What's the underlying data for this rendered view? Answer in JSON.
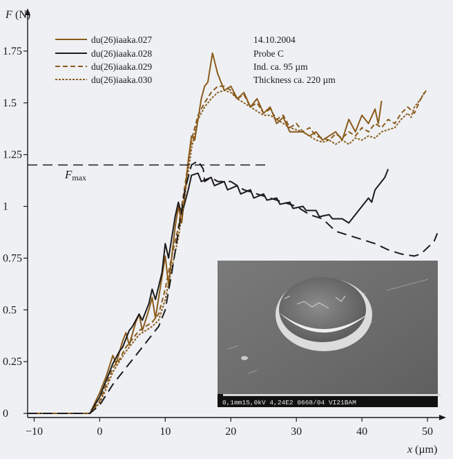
{
  "chart_data": {
    "type": "line",
    "x_axis": {
      "var": "x",
      "unit": "(µm)",
      "ticks": [
        -10,
        0,
        10,
        20,
        30,
        40,
        50
      ],
      "range": [
        -11,
        52
      ]
    },
    "y_axis": {
      "var": "F",
      "unit": "(N)",
      "ticks": [
        0,
        0.25,
        0.5,
        0.75,
        1,
        1.25,
        1.5,
        1.75
      ],
      "tick_labels": [
        "0",
        "0.25",
        "0.5",
        "0.75",
        "1",
        "1.25",
        "1.5",
        "1.75"
      ],
      "range": [
        -0.02,
        1.93
      ]
    },
    "series": [
      {
        "name": "du(26)iaaka.027",
        "color": "#8a5a1a",
        "style": "solid",
        "points": [
          [
            -11,
            0
          ],
          [
            -1.5,
            0
          ],
          [
            0,
            0.1
          ],
          [
            1,
            0.18
          ],
          [
            2,
            0.28
          ],
          [
            2.5,
            0.24
          ],
          [
            3.5,
            0.35
          ],
          [
            4,
            0.39
          ],
          [
            4.5,
            0.33
          ],
          [
            5.5,
            0.44
          ],
          [
            6,
            0.48
          ],
          [
            6.5,
            0.4
          ],
          [
            7.5,
            0.5
          ],
          [
            8,
            0.56
          ],
          [
            8.5,
            0.46
          ],
          [
            9.5,
            0.66
          ],
          [
            10,
            0.76
          ],
          [
            10.5,
            0.62
          ],
          [
            11.5,
            0.9
          ],
          [
            12,
            1.0
          ],
          [
            12.5,
            0.92
          ],
          [
            13.5,
            1.22
          ],
          [
            14,
            1.34
          ],
          [
            14.5,
            1.32
          ],
          [
            15.5,
            1.52
          ],
          [
            16,
            1.58
          ],
          [
            16.5,
            1.6
          ],
          [
            17.2,
            1.74
          ],
          [
            18,
            1.64
          ],
          [
            19,
            1.56
          ],
          [
            20,
            1.58
          ],
          [
            21,
            1.52
          ],
          [
            22,
            1.55
          ],
          [
            23,
            1.48
          ],
          [
            24,
            1.52
          ],
          [
            25,
            1.45
          ],
          [
            26,
            1.48
          ],
          [
            27,
            1.4
          ],
          [
            28,
            1.43
          ],
          [
            29,
            1.36
          ],
          [
            31,
            1.36
          ],
          [
            32,
            1.34
          ],
          [
            33,
            1.36
          ],
          [
            34,
            1.32
          ],
          [
            35,
            1.34
          ],
          [
            36,
            1.36
          ],
          [
            37,
            1.32
          ],
          [
            38,
            1.42
          ],
          [
            39,
            1.36
          ],
          [
            40,
            1.44
          ],
          [
            41,
            1.4
          ],
          [
            42,
            1.47
          ],
          [
            42.5,
            1.4
          ],
          [
            43,
            1.51
          ]
        ]
      },
      {
        "name": "du(26)iaaka.028",
        "color": "#1a1a1a",
        "style": "solid",
        "points": [
          [
            -11,
            0
          ],
          [
            -1.5,
            0
          ],
          [
            0,
            0.08
          ],
          [
            1,
            0.16
          ],
          [
            2,
            0.24
          ],
          [
            3,
            0.3
          ],
          [
            3.5,
            0.32
          ],
          [
            4.5,
            0.4
          ],
          [
            5,
            0.42
          ],
          [
            6,
            0.48
          ],
          [
            6.5,
            0.45
          ],
          [
            7.5,
            0.53
          ],
          [
            8,
            0.6
          ],
          [
            8.5,
            0.55
          ],
          [
            9.5,
            0.68
          ],
          [
            10,
            0.82
          ],
          [
            10.5,
            0.75
          ],
          [
            11.5,
            0.95
          ],
          [
            12,
            1.02
          ],
          [
            12.5,
            0.96
          ],
          [
            13.5,
            1.08
          ],
          [
            14,
            1.15
          ],
          [
            15,
            1.16
          ],
          [
            15.5,
            1.12
          ],
          [
            17,
            1.14
          ],
          [
            17.5,
            1.1
          ],
          [
            19,
            1.12
          ],
          [
            19.5,
            1.08
          ],
          [
            21,
            1.1
          ],
          [
            21.5,
            1.06
          ],
          [
            23,
            1.08
          ],
          [
            23.5,
            1.04
          ],
          [
            25,
            1.06
          ],
          [
            25.5,
            1.03
          ],
          [
            27,
            1.04
          ],
          [
            27.5,
            1.01
          ],
          [
            29,
            1.02
          ],
          [
            29.5,
            0.99
          ],
          [
            31,
            1.0
          ],
          [
            31.5,
            0.98
          ],
          [
            33,
            0.98
          ],
          [
            33.5,
            0.95
          ],
          [
            35,
            0.96
          ],
          [
            35.5,
            0.94
          ],
          [
            37,
            0.94
          ],
          [
            38,
            0.92
          ],
          [
            39,
            0.96
          ],
          [
            40,
            1.0
          ],
          [
            41,
            1.04
          ],
          [
            41.5,
            1.02
          ],
          [
            42,
            1.08
          ],
          [
            43,
            1.12
          ],
          [
            43.5,
            1.14
          ],
          [
            44,
            1.18
          ]
        ]
      },
      {
        "name": "du(26)iaaka.029",
        "color": "#8a5a1a",
        "style": "dashed",
        "points": [
          [
            -11,
            0
          ],
          [
            -1.5,
            0
          ],
          [
            0,
            0.06
          ],
          [
            1,
            0.14
          ],
          [
            2,
            0.22
          ],
          [
            3,
            0.26
          ],
          [
            4,
            0.32
          ],
          [
            5,
            0.36
          ],
          [
            6,
            0.4
          ],
          [
            7,
            0.42
          ],
          [
            8,
            0.44
          ],
          [
            9,
            0.48
          ],
          [
            10,
            0.6
          ],
          [
            11,
            0.76
          ],
          [
            12,
            0.9
          ],
          [
            13,
            1.1
          ],
          [
            14,
            1.32
          ],
          [
            15,
            1.44
          ],
          [
            16,
            1.5
          ],
          [
            17,
            1.55
          ],
          [
            18,
            1.58
          ],
          [
            19,
            1.58
          ],
          [
            20,
            1.56
          ],
          [
            21,
            1.52
          ],
          [
            22,
            1.54
          ],
          [
            23,
            1.48
          ],
          [
            24,
            1.5
          ],
          [
            25,
            1.45
          ],
          [
            26,
            1.47
          ],
          [
            27,
            1.42
          ],
          [
            28,
            1.44
          ],
          [
            29,
            1.38
          ],
          [
            30,
            1.4
          ],
          [
            31,
            1.36
          ],
          [
            32,
            1.38
          ],
          [
            33,
            1.34
          ],
          [
            34,
            1.33
          ],
          [
            35,
            1.32
          ],
          [
            36,
            1.35
          ],
          [
            37,
            1.33
          ],
          [
            38,
            1.36
          ],
          [
            39,
            1.34
          ],
          [
            40,
            1.38
          ],
          [
            41,
            1.36
          ],
          [
            42,
            1.4
          ],
          [
            43,
            1.38
          ],
          [
            44,
            1.42
          ],
          [
            45,
            1.4
          ],
          [
            46,
            1.45
          ],
          [
            47,
            1.48
          ],
          [
            48,
            1.45
          ],
          [
            49,
            1.52
          ],
          [
            50,
            1.57
          ]
        ]
      },
      {
        "name": "du(26)iaaka.030",
        "color": "#8a5a1a",
        "style": "dotted",
        "points": [
          [
            -11,
            0
          ],
          [
            -1.5,
            0
          ],
          [
            0,
            0.05
          ],
          [
            1,
            0.12
          ],
          [
            2,
            0.2
          ],
          [
            3,
            0.25
          ],
          [
            4,
            0.3
          ],
          [
            5,
            0.34
          ],
          [
            6,
            0.38
          ],
          [
            7,
            0.4
          ],
          [
            8,
            0.42
          ],
          [
            9,
            0.45
          ],
          [
            10,
            0.55
          ],
          [
            11,
            0.7
          ],
          [
            12,
            0.85
          ],
          [
            13,
            1.05
          ],
          [
            14,
            1.28
          ],
          [
            15,
            1.42
          ],
          [
            16,
            1.48
          ],
          [
            17,
            1.52
          ],
          [
            18,
            1.55
          ],
          [
            19,
            1.56
          ],
          [
            20,
            1.55
          ],
          [
            21,
            1.52
          ],
          [
            22,
            1.5
          ],
          [
            23,
            1.48
          ],
          [
            24,
            1.46
          ],
          [
            25,
            1.44
          ],
          [
            26,
            1.44
          ],
          [
            27,
            1.42
          ],
          [
            28,
            1.4
          ],
          [
            29,
            1.38
          ],
          [
            30,
            1.37
          ],
          [
            31,
            1.36
          ],
          [
            32,
            1.34
          ],
          [
            33,
            1.32
          ],
          [
            34,
            1.31
          ],
          [
            35,
            1.32
          ],
          [
            36,
            1.3
          ],
          [
            37,
            1.32
          ],
          [
            38,
            1.3
          ],
          [
            39,
            1.33
          ],
          [
            40,
            1.32
          ],
          [
            41,
            1.34
          ],
          [
            42,
            1.33
          ],
          [
            43,
            1.36
          ],
          [
            44,
            1.37
          ],
          [
            45,
            1.38
          ],
          [
            46,
            1.42
          ],
          [
            47,
            1.45
          ],
          [
            47.5,
            1.43
          ],
          [
            48,
            1.48
          ],
          [
            49,
            1.52
          ],
          [
            49.5,
            1.55
          ]
        ]
      },
      {
        "name": "",
        "color": "#1a1a1a",
        "style": "longdash",
        "points": [
          [
            -11,
            0
          ],
          [
            -1.5,
            0
          ],
          [
            0,
            0.04
          ],
          [
            2,
            0.14
          ],
          [
            4,
            0.22
          ],
          [
            6,
            0.3
          ],
          [
            8,
            0.38
          ],
          [
            9,
            0.42
          ],
          [
            10,
            0.5
          ],
          [
            11,
            0.68
          ],
          [
            12,
            0.88
          ],
          [
            13,
            1.08
          ],
          [
            14,
            1.2
          ],
          [
            15,
            1.22
          ],
          [
            15.8,
            1.18
          ],
          [
            16,
            1.12
          ],
          [
            17,
            1.14
          ],
          [
            18,
            1.12
          ],
          [
            20,
            1.12
          ],
          [
            22,
            1.08
          ],
          [
            24,
            1.06
          ],
          [
            26,
            1.04
          ],
          [
            28,
            1.02
          ],
          [
            30,
            1.0
          ],
          [
            32,
            0.96
          ],
          [
            34,
            0.94
          ],
          [
            36,
            0.88
          ],
          [
            38,
            0.86
          ],
          [
            40,
            0.84
          ],
          [
            42,
            0.82
          ],
          [
            44,
            0.79
          ],
          [
            46,
            0.77
          ],
          [
            48,
            0.76
          ],
          [
            49,
            0.77
          ],
          [
            50,
            0.8
          ],
          [
            51,
            0.83
          ],
          [
            51.5,
            0.87
          ]
        ]
      }
    ],
    "annotations": {
      "notes": [
        "14.10.2004",
        "Probe C",
        "Ind. ca. 95 µm",
        "Thickness ca. 220 µm"
      ],
      "fmax_line_value": 1.2,
      "fmax_label": "F",
      "fmax_sub": "max"
    },
    "inset": {
      "caption": "0,1mm15,0kV  4,24E2  0668/04  VI21BAM"
    },
    "grid": false,
    "legend_position": "top-left"
  }
}
